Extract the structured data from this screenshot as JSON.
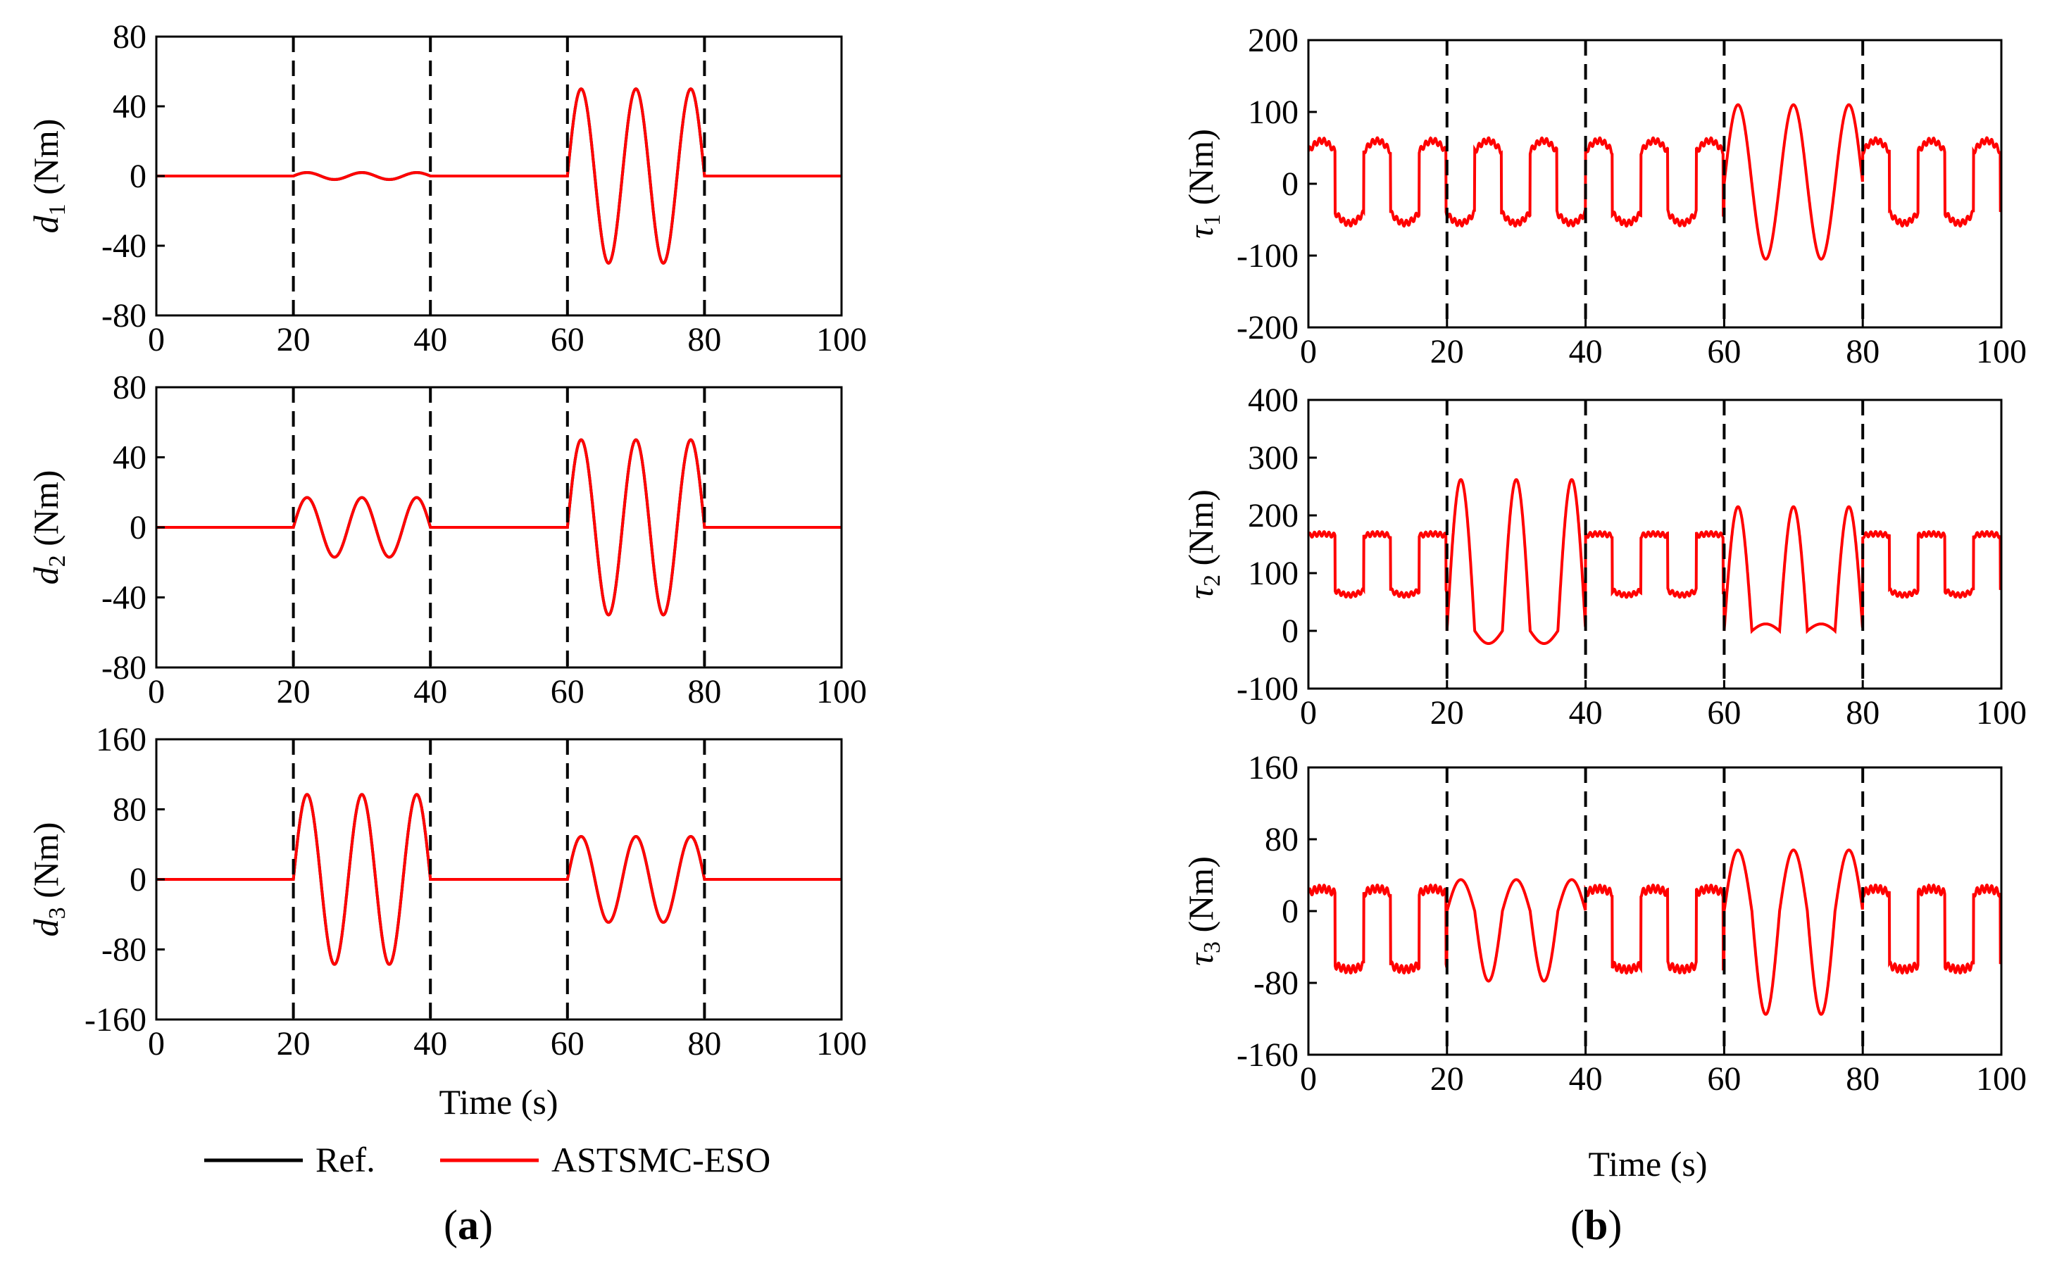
{
  "colors": {
    "ref": "#000000",
    "astsmc": "#ff0000",
    "axis": "#000000",
    "dash": "#000000"
  },
  "legend": {
    "ref_label": "Ref.",
    "astsmc_label": "ASTSMC-ESO"
  },
  "panel_labels": {
    "a": "a",
    "b": "b"
  },
  "chart_data": [
    {
      "id": "d1",
      "type": "line",
      "title": "",
      "ylabel_sym": "d",
      "ylabel_sub": "1",
      "ylabel_unit": " (Nm)",
      "xlabel": "",
      "xlim": [
        0,
        100
      ],
      "ylim": [
        -80,
        80
      ],
      "xticks": [
        0,
        20,
        40,
        60,
        80,
        100
      ],
      "xtick_labels": [
        "0",
        "20",
        "40",
        "60",
        "80",
        "100"
      ],
      "yticks": [
        80,
        40,
        0,
        -40,
        -80
      ],
      "ytick_labels": [
        "80",
        "40",
        "0",
        "-40",
        "-80"
      ],
      "vlines": [
        20,
        40,
        60,
        80
      ],
      "series": [
        {
          "name": "Ref.",
          "model": "disturbance",
          "segments": [
            [
              20,
              40,
              2
            ],
            [
              60,
              80,
              50
            ]
          ]
        },
        {
          "name": "ASTSMC-ESO",
          "model": "disturbance",
          "segments": [
            [
              20,
              40,
              2
            ],
            [
              60,
              80,
              50
            ]
          ]
        }
      ]
    },
    {
      "id": "d2",
      "type": "line",
      "title": "",
      "ylabel_sym": "d",
      "ylabel_sub": "2",
      "ylabel_unit": " (Nm)",
      "xlabel": "",
      "xlim": [
        0,
        100
      ],
      "ylim": [
        -80,
        80
      ],
      "xticks": [
        0,
        20,
        40,
        60,
        80,
        100
      ],
      "xtick_labels": [
        "0",
        "20",
        "40",
        "60",
        "80",
        "100"
      ],
      "yticks": [
        80,
        40,
        0,
        -40,
        -80
      ],
      "ytick_labels": [
        "80",
        "40",
        "0",
        "-40",
        "-80"
      ],
      "vlines": [
        20,
        40,
        60,
        80
      ],
      "series": [
        {
          "name": "Ref.",
          "model": "disturbance",
          "segments": [
            [
              20,
              40,
              17
            ],
            [
              60,
              80,
              50
            ]
          ]
        },
        {
          "name": "ASTSMC-ESO",
          "model": "disturbance",
          "segments": [
            [
              20,
              40,
              17
            ],
            [
              60,
              80,
              50
            ]
          ]
        }
      ]
    },
    {
      "id": "d3",
      "type": "line",
      "title": "",
      "ylabel_sym": "d",
      "ylabel_sub": "3",
      "ylabel_unit": " (Nm)",
      "xlabel": "Time (s)",
      "xlim": [
        0,
        100
      ],
      "ylim": [
        -160,
        160
      ],
      "xticks": [
        0,
        20,
        40,
        60,
        80,
        100
      ],
      "xtick_labels": [
        "0",
        "20",
        "40",
        "60",
        "80",
        "100"
      ],
      "yticks": [
        160,
        80,
        0,
        -80,
        -160
      ],
      "ytick_labels": [
        "160",
        "80",
        "0",
        "-80",
        "-160"
      ],
      "vlines": [
        20,
        40,
        60,
        80
      ],
      "series": [
        {
          "name": "Ref.",
          "model": "disturbance",
          "segments": [
            [
              20,
              40,
              97
            ],
            [
              60,
              80,
              49
            ]
          ]
        },
        {
          "name": "ASTSMC-ESO",
          "model": "disturbance",
          "segments": [
            [
              20,
              40,
              97
            ],
            [
              60,
              80,
              49
            ]
          ]
        }
      ]
    },
    {
      "id": "tau1",
      "type": "line",
      "title": "",
      "ylabel_sym": "τ",
      "ylabel_sub": "1",
      "ylabel_unit": " (Nm)",
      "xlabel": "",
      "xlim": [
        0,
        100
      ],
      "ylim": [
        -200,
        200
      ],
      "xticks": [
        0,
        20,
        40,
        60,
        80,
        100
      ],
      "xtick_labels": [
        "0",
        "20",
        "40",
        "60",
        "80",
        "100"
      ],
      "yticks": [
        200,
        100,
        0,
        -100,
        -200
      ],
      "ytick_labels": [
        "200",
        "100",
        "0",
        "-100",
        "-200"
      ],
      "vlines": [
        20,
        40,
        60,
        80
      ],
      "series": [
        {
          "name": "ASTSMC-ESO",
          "model": "torque",
          "base_high": 45,
          "base_low": -40,
          "peak_high": 60,
          "peak_low": -55,
          "bursts": [
            [
              60,
              80,
              110,
              -105
            ]
          ]
        }
      ]
    },
    {
      "id": "tau2",
      "type": "line",
      "title": "",
      "ylabel_sym": "τ",
      "ylabel_sub": "2",
      "ylabel_unit": " (Nm)",
      "xlabel": "",
      "xlim": [
        0,
        100
      ],
      "ylim": [
        -100,
        400
      ],
      "xticks": [
        0,
        20,
        40,
        60,
        80,
        100
      ],
      "xtick_labels": [
        "0",
        "20",
        "40",
        "60",
        "80",
        "100"
      ],
      "yticks": [
        400,
        300,
        200,
        100,
        0,
        -100
      ],
      "ytick_labels": [
        "400",
        "300",
        "200",
        "100",
        "0",
        "-100"
      ],
      "vlines": [
        20,
        40,
        60,
        80
      ],
      "series": [
        {
          "name": "ASTSMC-ESO",
          "model": "torque",
          "base_high": 165,
          "base_low": 70,
          "peak_high": 168,
          "peak_low": 62,
          "bursts": [
            [
              20,
              40,
              262,
              -22
            ],
            [
              60,
              80,
              215,
              12
            ]
          ]
        }
      ]
    },
    {
      "id": "tau3",
      "type": "line",
      "title": "",
      "ylabel_sym": "τ",
      "ylabel_sub": "3",
      "ylabel_unit": " (Nm)",
      "xlabel": "Time (s)",
      "xlim": [
        0,
        100
      ],
      "ylim": [
        -160,
        160
      ],
      "xticks": [
        0,
        20,
        40,
        60,
        80,
        100
      ],
      "xtick_labels": [
        "0",
        "20",
        "40",
        "60",
        "80",
        "100"
      ],
      "yticks": [
        160,
        80,
        0,
        -80,
        -160
      ],
      "ytick_labels": [
        "160",
        "80",
        "0",
        "-80",
        "-160"
      ],
      "vlines": [
        20,
        40,
        60,
        80
      ],
      "series": [
        {
          "name": "ASTSMC-ESO",
          "model": "torque",
          "base_high": 20,
          "base_low": -60,
          "peak_high": 25,
          "peak_low": -65,
          "bursts": [
            [
              20,
              40,
              35,
              -78
            ],
            [
              60,
              80,
              68,
              -115
            ]
          ]
        }
      ]
    }
  ]
}
